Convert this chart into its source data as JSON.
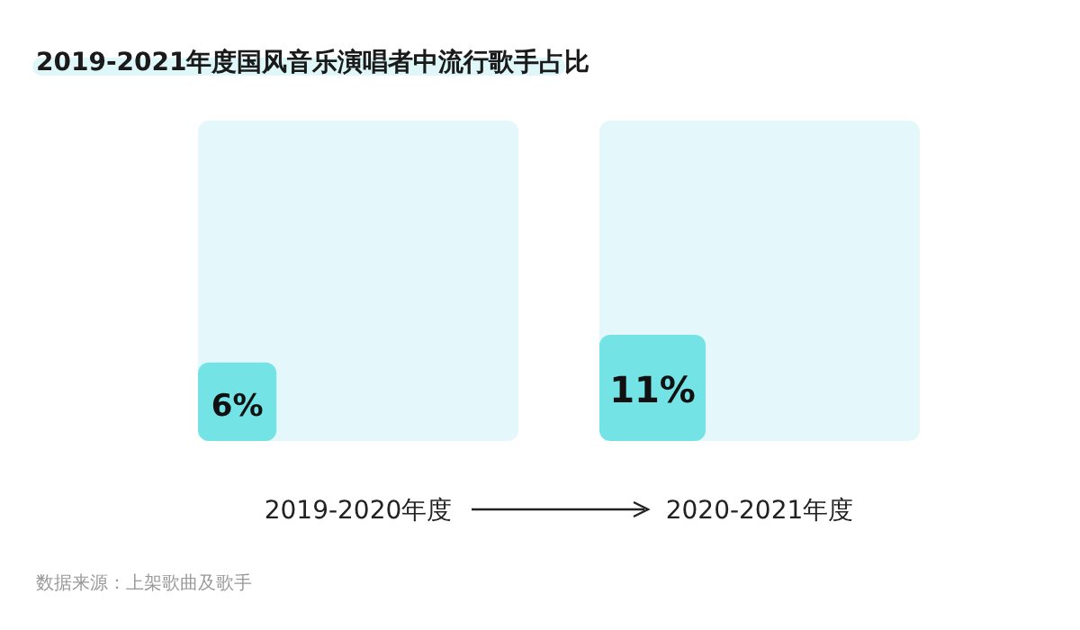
{
  "chart_data": {
    "type": "other",
    "title": "2019-2021年度国风音乐演唱者中流行歌手占比",
    "categories": [
      "2019-2020年度",
      "2020-2021年度"
    ],
    "values": [
      6,
      11
    ],
    "value_labels": [
      "6%",
      "11%"
    ],
    "color": "#74e3e6",
    "annotations": [
      "数据来源：上架歌曲及歌手"
    ]
  }
}
